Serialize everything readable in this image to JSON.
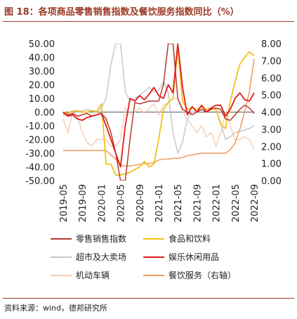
{
  "title": "图 18：各项商品零售销售指数及餐饮服务指数同比（%）",
  "source": "资料来源：wind，德邦研究所",
  "chart_data": {
    "type": "line",
    "x_labels": [
      "2019-05",
      "2019-09",
      "2020-01",
      "2020-05",
      "2020-09",
      "2021-01",
      "2021-05",
      "2021-09",
      "2022-01",
      "2022-05",
      "2022-09"
    ],
    "x": [
      "2019-05",
      "2019-06",
      "2019-07",
      "2019-08",
      "2019-09",
      "2019-10",
      "2019-11",
      "2019-12",
      "2020-01",
      "2020-02",
      "2020-03",
      "2020-04",
      "2020-05",
      "2020-06",
      "2020-07",
      "2020-08",
      "2020-09",
      "2020-10",
      "2020-11",
      "2020-12",
      "2021-01",
      "2021-02",
      "2021-03",
      "2021-04",
      "2021-05",
      "2021-06",
      "2021-07",
      "2021-08",
      "2021-09",
      "2021-10",
      "2021-11",
      "2021-12",
      "2022-01",
      "2022-02",
      "2022-03",
      "2022-04",
      "2022-05",
      "2022-06",
      "2022-07",
      "2022-08",
      "2022-09"
    ],
    "y_left": {
      "ylim": [
        -50,
        50
      ],
      "ticks": [
        "50.00",
        "40.00",
        "30.00",
        "20.00",
        "10.00",
        "0.00",
        "-10.00",
        "-20.00",
        "-30.00",
        "-40.00",
        "-50.00"
      ]
    },
    "y_right": {
      "ylim": [
        0,
        8
      ],
      "ticks": [
        "8.00",
        "7.00",
        "6.00",
        "5.00",
        "4.00",
        "3.00",
        "2.00",
        "1.00",
        "0.00"
      ]
    },
    "series": [
      {
        "name": "零售销售指数",
        "color": "#b53a2f",
        "axis": "left",
        "values": [
          -1,
          -2,
          -1,
          -3,
          -2,
          -1,
          -3,
          -2,
          -1,
          -5,
          -15,
          -30,
          -52,
          -50,
          -20,
          7,
          6,
          7,
          8,
          8,
          8,
          20,
          60,
          60,
          10,
          2,
          0,
          -2,
          0,
          2,
          0,
          2,
          3,
          2,
          -5,
          -6,
          -2,
          2,
          5,
          3,
          -1
        ]
      },
      {
        "name": "食品和饮料",
        "color": "#f0c21b",
        "axis": "left",
        "values": [
          0,
          -1,
          1,
          1,
          0,
          0,
          1,
          0,
          6,
          -38,
          -38,
          -46,
          -46,
          -45,
          -44,
          -42,
          -40,
          -36,
          -40,
          -38,
          -20,
          2,
          7,
          10,
          47,
          8,
          2,
          3,
          2,
          4,
          2,
          3,
          2,
          -9,
          -12,
          8,
          22,
          35,
          40,
          44,
          41
        ]
      },
      {
        "name": "超市及大卖场",
        "color": "#c8c8c8",
        "axis": "left",
        "values": [
          -3,
          -1,
          1,
          0,
          1,
          2,
          1,
          1,
          3,
          10,
          35,
          80,
          50,
          15,
          8,
          10,
          12,
          15,
          18,
          15,
          16,
          22,
          14,
          -15,
          -30,
          -22,
          -5,
          0,
          0,
          2,
          0,
          3,
          2,
          -8,
          -20,
          -18,
          -15,
          -14,
          -13,
          -12,
          -10
        ]
      },
      {
        "name": "娱乐休闲用品",
        "color": "#e31a1c",
        "axis": "left",
        "values": [
          0,
          -3,
          -2,
          -5,
          -6,
          -4,
          -3,
          -2,
          -1,
          -10,
          -20,
          -30,
          -40,
          -10,
          10,
          8,
          12,
          9,
          13,
          18,
          12,
          10,
          20,
          14,
          60,
          18,
          -2,
          4,
          0,
          5,
          0,
          3,
          5,
          5,
          -3,
          2,
          10,
          14,
          9,
          8,
          14
        ]
      },
      {
        "name": "机动车辆",
        "color": "#f6cfb6",
        "axis": "left",
        "values": [
          -5,
          -15,
          0,
          -3,
          -15,
          -22,
          -25,
          -20,
          -20,
          -20,
          -25,
          -25,
          -20,
          3,
          -2,
          0,
          3,
          -1,
          3,
          6,
          -2,
          5,
          7,
          10,
          10,
          0,
          -5,
          -10,
          -15,
          -10,
          -18,
          -15,
          -25,
          -15,
          0,
          -10,
          -20,
          -20,
          -18,
          -20,
          -27
        ]
      },
      {
        "name": "餐饮服务（右轴）",
        "color": "#ef9a5b",
        "axis": "right",
        "values": [
          1.75,
          1.75,
          1.75,
          1.75,
          1.75,
          1.75,
          1.75,
          1.75,
          1.75,
          1.75,
          1.5,
          1.25,
          0.9,
          0.85,
          0.85,
          0.9,
          0.95,
          1.0,
          1.0,
          1.05,
          1.2,
          1.25,
          1.25,
          1.3,
          1.3,
          1.35,
          1.45,
          1.5,
          1.55,
          1.6,
          1.6,
          1.6,
          1.6,
          1.6,
          1.6,
          1.8,
          2.2,
          3.0,
          4.0,
          5.2,
          7.1
        ]
      }
    ],
    "legend_placement": "bottom",
    "grid": false
  }
}
